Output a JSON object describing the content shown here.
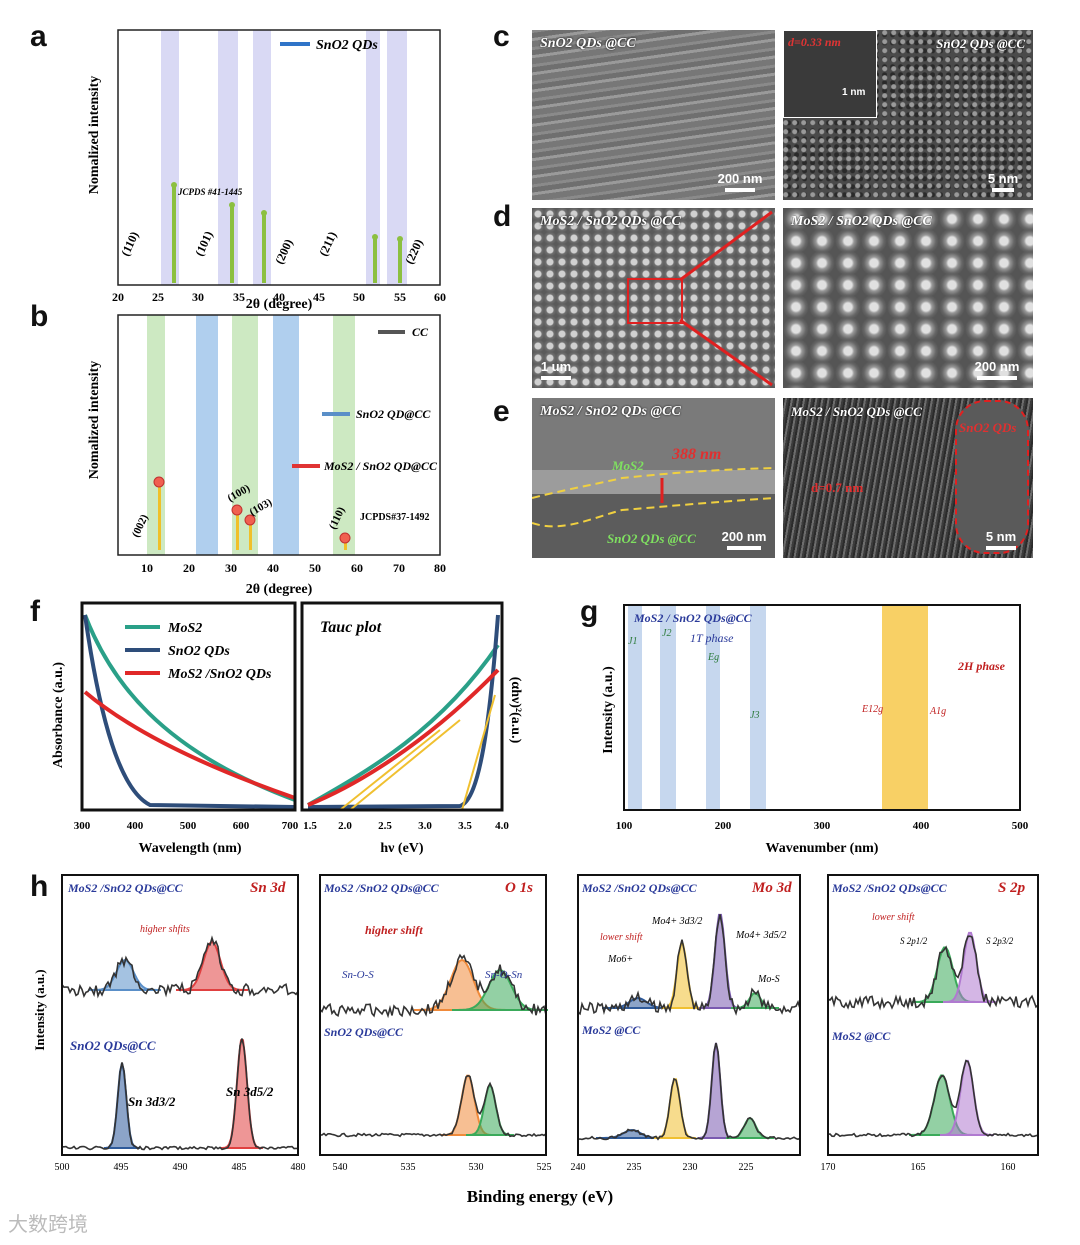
{
  "panels": {
    "a": "a",
    "b": "b",
    "c": "c",
    "d": "d",
    "e": "e",
    "f": "f",
    "g": "g",
    "h": "h"
  },
  "colors": {
    "blue": "#2f74c8",
    "red": "#e03434",
    "gray": "#555555",
    "steel": "#5a8fc8",
    "green": "#9ad28a",
    "teal": "#2a9a8c",
    "navy": "#2e4d7a",
    "yellow": "#f5c242",
    "purple": "#9b6fd0"
  },
  "panel_a": {
    "legend": "SnO2 QDs",
    "ylabel": "Nomalized intensity",
    "xlabel": "2θ (degree)",
    "xticks": [
      "20",
      "25",
      "30",
      "35",
      "40",
      "45",
      "50",
      "55",
      "60"
    ],
    "ref": "JCPDS #41-1445",
    "peaks": [
      "(110)",
      "(101)",
      "(200)",
      "(211)",
      "(220)"
    ]
  },
  "panel_b": {
    "legend": [
      "CC",
      "SnO2 QD@CC",
      "MoS2 / SnO2 QD@CC"
    ],
    "ylabel": "Nomalized intensity",
    "xlabel": "2θ (degree)",
    "xticks": [
      "10",
      "20",
      "30",
      "40",
      "50",
      "60",
      "70",
      "80"
    ],
    "ref": "JCPDS#37-1492",
    "peaks": [
      "(002)",
      "(100)",
      "(103)",
      "(110)"
    ]
  },
  "panel_c": {
    "left_label": "SnO2 QDs @CC",
    "left_scale": "200 nm",
    "right_label": "SnO2 QDs @CC",
    "right_scale": "5 nm",
    "inset_d": "d=0.33 nm",
    "inset_scale": "1 nm"
  },
  "panel_d": {
    "left_label": "MoS2 / SnO2 QDs @CC",
    "left_scale": "1 um",
    "right_label": "MoS2 / SnO2 QDs @CC",
    "right_scale": "200 nm"
  },
  "panel_e": {
    "left_label": "MoS2 / SnO2 QDs @CC",
    "thickness": "388 nm",
    "mos2": "MoS2",
    "sno2": "SnO2 QDs @CC",
    "left_scale": "200 nm",
    "right_label": "MoS2 / SnO2 QDs @CC",
    "right_sno2": "SnO2 QDs",
    "d_spacing": "d=0.7 nm",
    "right_scale": "5 nm"
  },
  "panel_f": {
    "legend": [
      "MoS2",
      "SnO2  QDs",
      "MoS2 /SnO2 QDs"
    ],
    "ylabel_left": "Absorbance (a.u.)",
    "xlabel_left": "Wavelength (nm)",
    "xticks_left": [
      "300",
      "400",
      "500",
      "600",
      "700"
    ],
    "title_right": "Tauc plot",
    "ylabel_right": "(αhν)²(a.u.)",
    "xlabel_right": "hν (eV)",
    "xticks_right": [
      "1.5",
      "2.0",
      "2.5",
      "3.0",
      "3.5",
      "4.0"
    ]
  },
  "panel_g": {
    "title": "MoS2 / SnO2 QDs@CC",
    "ylabel": "Intensity (a.u.)",
    "xlabel": "Wavenumber (nm)",
    "xticks": [
      "100",
      "200",
      "300",
      "400",
      "500"
    ],
    "labels": [
      "J1",
      "J2",
      "1T phase",
      "Eg",
      "J3",
      "2H phase",
      "E12g",
      "A1g"
    ]
  },
  "panel_h": {
    "ylabel": "Intensity (a.u.)",
    "xlabel": "Binding energy (eV)",
    "sn": {
      "top": "MoS2 /SnO2 QDs@CC",
      "element": "Sn 3d",
      "shift": "higher shfits",
      "bottom": "SnO2 QDs@CC",
      "p1": "Sn 3d3/2",
      "p2": "Sn 3d5/2",
      "xticks": [
        "500",
        "495",
        "490",
        "485",
        "480"
      ]
    },
    "o": {
      "top": "MoS2 /SnO2 QDs@CC",
      "element": "O 1s",
      "shift": "higher shift",
      "p1": "Sn-O-S",
      "p2": "Sn-O-Sn",
      "bottom": "SnO2 QDs@CC",
      "xticks": [
        "540",
        "535",
        "530",
        "525"
      ]
    },
    "mo": {
      "top": "MoS2 /SnO2 QDs@CC",
      "element": "Mo 3d",
      "shift": "lower shift",
      "p0": "Mo6+",
      "p1": "Mo4+ 3d3/2",
      "p2": "Mo4+ 3d5/2",
      "p3": "Mo-S",
      "bottom": "MoS2 @CC",
      "xticks": [
        "240",
        "235",
        "230",
        "225"
      ]
    },
    "s": {
      "top": "MoS2 /SnO2 QDs@CC",
      "element": "S 2p",
      "shift": "lower shift",
      "p1": "S 2p1/2",
      "p2": "S 2p3/2",
      "bottom": "MoS2 @CC",
      "xticks": [
        "170",
        "165",
        "160"
      ]
    }
  },
  "watermark": "大数跨境"
}
